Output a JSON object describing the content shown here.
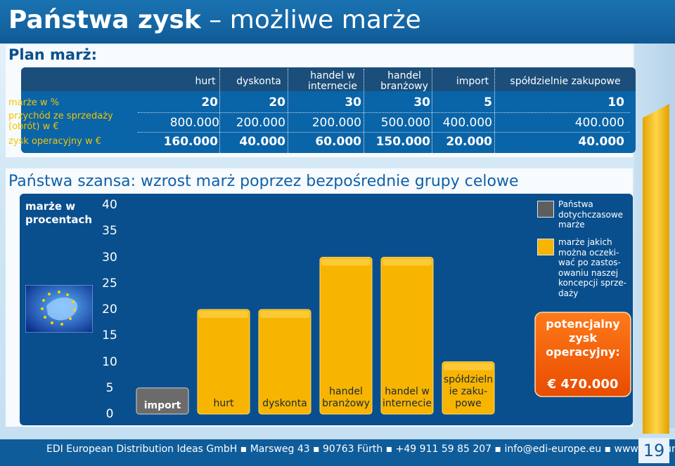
{
  "title": {
    "bold": "Państwa zysk",
    "rest": " – możliwe marże"
  },
  "plan": {
    "heading": "Plan marż:",
    "columns": [
      "hurt",
      "dyskonta",
      "handel w internecie",
      "handel branżowy",
      "import",
      "spółdzielnie zakupowe"
    ],
    "rows": [
      {
        "label": "marże w %",
        "values": [
          "20",
          "20",
          "30",
          "30",
          "5",
          "10"
        ]
      },
      {
        "label": "przychód ze sprzedaży (obrót) w €",
        "values": [
          "800.000",
          "200.000",
          "200.000",
          "500.000",
          "400.000",
          "400.000"
        ]
      },
      {
        "label": "zysk operacyjny w €",
        "values": [
          "160.000",
          "40.000",
          "60.000",
          "150.000",
          "20.000",
          "40.000"
        ]
      }
    ]
  },
  "section2": {
    "title": "Państwa szansa: wzrost marż poprzez bezpośrednie grupy celowe"
  },
  "chart_data": {
    "type": "bar",
    "ylabel": "marże w procentach",
    "ylim": [
      0,
      40
    ],
    "yticks": [
      "40",
      "35",
      "30",
      "25",
      "20",
      "15",
      "10",
      "5",
      "0"
    ],
    "categories": [
      "import",
      "hurt",
      "dyskonta",
      "handel branżowy",
      "handel w internecie",
      "spółdzielnie zakupowe"
    ],
    "category_labels": [
      "import",
      "hurt",
      "dyskonta",
      "handel\nbranżowy",
      "handel w\ninternecie",
      "spółdzieln\nie zaku-\npowe"
    ],
    "series": [
      {
        "name": "Państwa dotychczasowe marże",
        "values": [
          5,
          20,
          20,
          30,
          30,
          10
        ],
        "color": "#f7f7f7",
        "colors": [
          "#6b6b6b",
          "#f7b400",
          "#f7b400",
          "#f7b400",
          "#f7b400",
          "#f7b400"
        ]
      }
    ]
  },
  "legend": {
    "current": "Państwa\ndotychczasowe\nmarże",
    "expected": "marże jakich\nmożna oczeki-\nwać po zastos-\nowaniu naszej\nkoncepcji sprze-\ndaży",
    "current_color": "#555555",
    "expected_color": "#f7b400"
  },
  "profit": {
    "title": "potencjalny\nzysk\noperacyjny:",
    "value": "€ 470.000"
  },
  "footer": {
    "text": "EDI European Distribution Ideas GmbH ▪ Marsweg 43 ▪ 90763 Fürth ▪ +49 911 59 85 207 ▪ info@edi-europe.eu ▪ www.edi-europe.eu",
    "page": "19"
  },
  "colors": {
    "title_bg": "#1565a3",
    "table_bg": "#0a64a8",
    "label_yellow": "#f3c500",
    "bar_gold": "#f7b400",
    "bar_gray": "#5e5e5e",
    "chart_bg": "#0a4f8d"
  }
}
